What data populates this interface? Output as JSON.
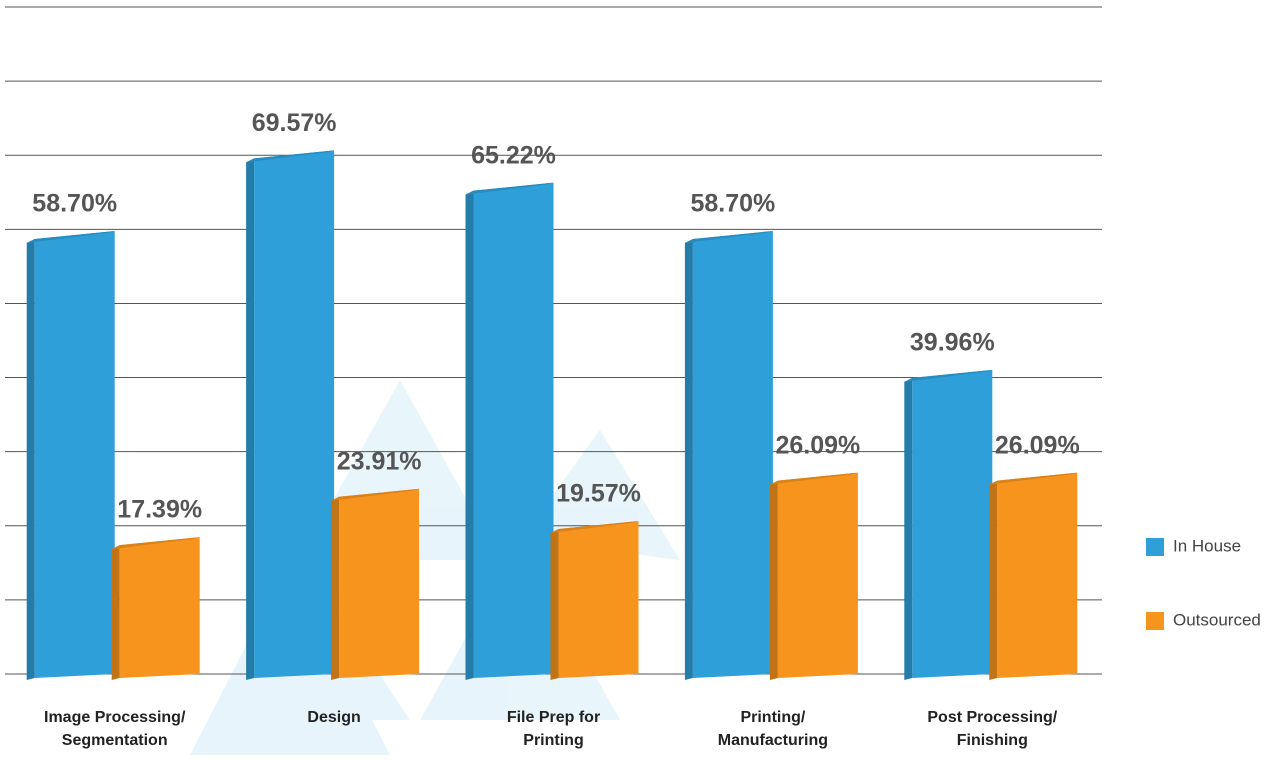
{
  "chart_data": {
    "type": "bar",
    "categories": [
      "Image Processing/\nSegmentation",
      "Design",
      "File Prep for\nPrinting",
      "Printing/\nManufacturing",
      "Post Processing/\nFinishing"
    ],
    "series": [
      {
        "name": "In House",
        "color": "#2e9fd8",
        "values": [
          58.7,
          69.57,
          65.22,
          58.7,
          39.96
        ],
        "value_labels": [
          "58.70%",
          "69.57%",
          "65.22%",
          "58.70%",
          "39.96%"
        ]
      },
      {
        "name": "Outsourced",
        "color": "#f7941d",
        "values": [
          17.39,
          23.91,
          19.57,
          26.09,
          26.09
        ],
        "value_labels": [
          "17.39%",
          "23.91%",
          "19.57%",
          "26.09%",
          "26.09%"
        ]
      }
    ],
    "ylim": [
      0,
      90
    ],
    "yticks": [
      0,
      10,
      20,
      30,
      40,
      50,
      60,
      70,
      80,
      90
    ],
    "grid": true,
    "legend": "right"
  }
}
